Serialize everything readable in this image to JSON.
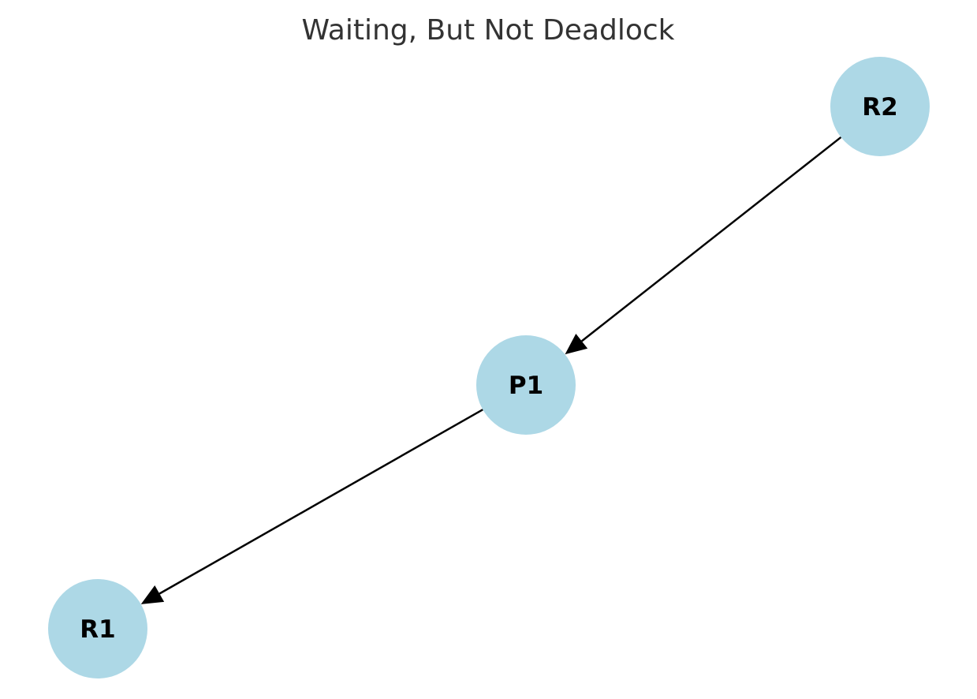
{
  "title": "Waiting, But Not Deadlock",
  "colors": {
    "node_fill": "#add8e6",
    "edge": "#000000",
    "title_text": "#333333",
    "label_text": "#000000"
  },
  "nodes": [
    {
      "id": "R2",
      "label": "R2"
    },
    {
      "id": "P1",
      "label": "P1"
    },
    {
      "id": "R1",
      "label": "R1"
    }
  ],
  "edges": [
    {
      "from": "R2",
      "to": "P1"
    },
    {
      "from": "P1",
      "to": "R1"
    }
  ]
}
